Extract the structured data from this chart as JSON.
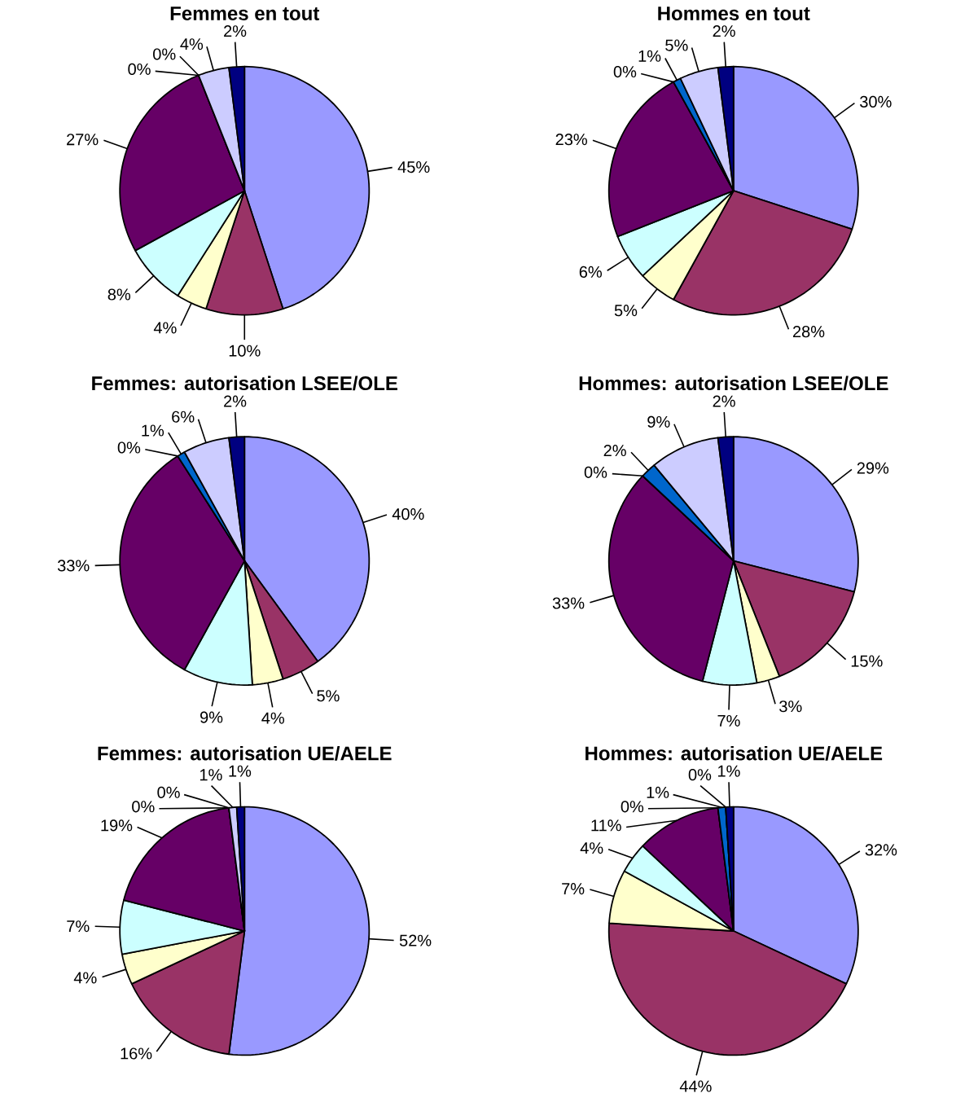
{
  "chart_data": [
    {
      "type": "pie",
      "title": "Femmes en tout",
      "categories": [
        null,
        null,
        null,
        null,
        null,
        null,
        null,
        null,
        null
      ],
      "values": [
        45,
        10,
        4,
        8,
        27,
        0,
        0,
        4,
        2
      ],
      "value_labels": [
        "45%",
        "10%",
        "4%",
        "8%",
        "27%",
        "0%",
        "0%",
        "4%",
        "2%"
      ],
      "colors": [
        "#9999ff",
        "#993366",
        "#ffffcc",
        "#ccffff",
        "#660066",
        "#ff8080",
        "#0066cc",
        "#ccccff",
        "#000080"
      ]
    },
    {
      "type": "pie",
      "title": "Hommes en tout",
      "categories": [
        null,
        null,
        null,
        null,
        null,
        null,
        null,
        null,
        null
      ],
      "values": [
        30,
        28,
        5,
        6,
        23,
        0,
        1,
        5,
        2
      ],
      "value_labels": [
        "30%",
        "28%",
        "5%",
        "6%",
        "23%",
        "0%",
        "1%",
        "5%",
        "2%"
      ],
      "colors": [
        "#9999ff",
        "#993366",
        "#ffffcc",
        "#ccffff",
        "#660066",
        "#ff8080",
        "#0066cc",
        "#ccccff",
        "#000080"
      ]
    },
    {
      "type": "pie",
      "title": "Femmes: autorisation LSEE/OLE",
      "categories": [
        null,
        null,
        null,
        null,
        null,
        null,
        null,
        null,
        null
      ],
      "values": [
        40,
        5,
        4,
        9,
        33,
        0,
        1,
        6,
        2
      ],
      "value_labels": [
        "40%",
        "5%",
        "4%",
        "9%",
        "33%",
        "0%",
        "1%",
        "6%",
        "2%"
      ],
      "colors": [
        "#9999ff",
        "#993366",
        "#ffffcc",
        "#ccffff",
        "#660066",
        "#ff8080",
        "#0066cc",
        "#ccccff",
        "#000080"
      ]
    },
    {
      "type": "pie",
      "title": "Hommes: autorisation LSEE/OLE",
      "categories": [
        null,
        null,
        null,
        null,
        null,
        null,
        null,
        null,
        null
      ],
      "values": [
        29,
        15,
        3,
        7,
        33,
        0,
        2,
        9,
        2
      ],
      "value_labels": [
        "29%",
        "15%",
        "3%",
        "7%",
        "33%",
        "0%",
        "2%",
        "9%",
        "2%"
      ],
      "colors": [
        "#9999ff",
        "#993366",
        "#ffffcc",
        "#ccffff",
        "#660066",
        "#ff8080",
        "#0066cc",
        "#ccccff",
        "#000080"
      ]
    },
    {
      "type": "pie",
      "title": "Femmes: autorisation UE/AELE",
      "categories": [
        null,
        null,
        null,
        null,
        null,
        null,
        null,
        null,
        null
      ],
      "values": [
        52,
        16,
        4,
        7,
        19,
        0,
        0,
        1,
        1
      ],
      "value_labels": [
        "52%",
        "16%",
        "4%",
        "7%",
        "19%",
        "0%",
        "0%",
        "1%",
        "1%"
      ],
      "colors": [
        "#9999ff",
        "#993366",
        "#ffffcc",
        "#ccffff",
        "#660066",
        "#ff8080",
        "#0066cc",
        "#ccccff",
        "#000080"
      ]
    },
    {
      "type": "pie",
      "title": "Hommes: autorisation UE/AELE",
      "categories": [
        null,
        null,
        null,
        null,
        null,
        null,
        null,
        null,
        null
      ],
      "values": [
        32,
        44,
        7,
        4,
        11,
        0,
        1,
        0,
        1
      ],
      "value_labels": [
        "32%",
        "44%",
        "7%",
        "4%",
        "11%",
        "0%",
        "1%",
        "0%",
        "1%"
      ],
      "colors": [
        "#9999ff",
        "#993366",
        "#ffffcc",
        "#ccffff",
        "#660066",
        "#ff8080",
        "#0066cc",
        "#ccccff",
        "#000080"
      ]
    }
  ]
}
